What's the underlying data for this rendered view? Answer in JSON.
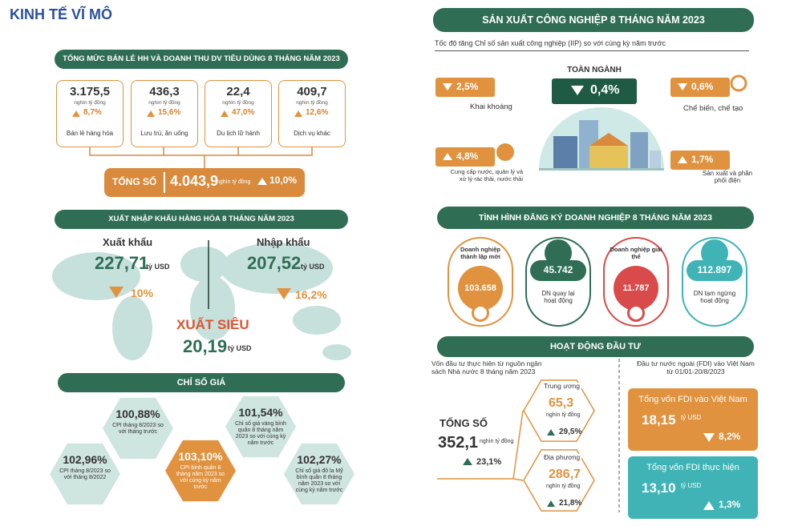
{
  "header": {
    "title": "KINH TẾ VĨ MÔ"
  },
  "retail": {
    "title": "TỔNG MỨC BÁN LẺ HH VÀ DOANH THU DV TIÊU DÙNG 8 THÁNG NĂM 2023",
    "items": [
      {
        "value": "3.175,5",
        "unit": "nghìn tỷ đồng",
        "change": "8,7%",
        "trend": "up",
        "label": "Bán lẻ hàng hóa"
      },
      {
        "value": "436,3",
        "unit": "nghìn tỷ đồng",
        "change": "15,6%",
        "trend": "up",
        "label": "Lưu trú, ăn uống"
      },
      {
        "value": "22,4",
        "unit": "nghìn tỷ đồng",
        "change": "47,0%",
        "trend": "up",
        "label": "Du lịch lữ hành"
      },
      {
        "value": "409,7",
        "unit": "nghìn tỷ đồng",
        "change": "12,6%",
        "trend": "up",
        "label": "Dịch vụ khác"
      }
    ],
    "total": {
      "label": "TỔNG SỐ",
      "value": "4.043,9",
      "unit": "nghìn tỷ đồng",
      "change": "10,0%",
      "trend": "up"
    }
  },
  "trade": {
    "title": "XUẤT NHẬP KHẨU HÀNG HÓA 8 THÁNG NĂM 2023",
    "export": {
      "label": "Xuất khẩu",
      "value": "227,71",
      "unit": "tỷ USD",
      "change": "10%",
      "trend": "down"
    },
    "import": {
      "label": "Nhập khẩu",
      "value": "207,52",
      "unit": "tỷ USD",
      "change": "16,2%",
      "trend": "down"
    },
    "surplus": {
      "label": "XUẤT SIÊU",
      "value": "20,19",
      "unit": "tỷ USD"
    }
  },
  "prices": {
    "title": "CHỈ SỐ GIÁ",
    "items": [
      {
        "value": "100,88%",
        "label": "CPI tháng 8/2023 so với tháng trước"
      },
      {
        "value": "101,54%",
        "label": "Chỉ số giá vàng bình quân 8 tháng năm 2023 so với cùng kỳ năm trước"
      },
      {
        "value": "102,96%",
        "label": "CPI tháng 8/2023 so với tháng 8/2022"
      },
      {
        "value": "103,10%",
        "label": "CPI bình quân 8 tháng năm 2023 so với cùng kỳ năm trước"
      },
      {
        "value": "102,27%",
        "label": "Chỉ số giá đô la Mỹ bình quân 8 tháng năm 2023 so với cùng kỳ năm trước"
      }
    ]
  },
  "industry": {
    "title": "SẢN XUẤT CÔNG NGHIỆP 8 THÁNG NĂM 2023",
    "subtitle": "Tốc độ tăng Chỉ số sản xuất công nghiệp (IIP) so với cùng kỳ năm trước",
    "overall": {
      "label": "TOÀN NGÀNH",
      "value": "0,4%",
      "trend": "down"
    },
    "items": [
      {
        "value": "2,5%",
        "trend": "down",
        "label": "Khai khoáng"
      },
      {
        "value": "0,6%",
        "trend": "down",
        "label": "Chế biến, chế tạo"
      },
      {
        "value": "4,8%",
        "trend": "up",
        "label": "Cung cấp nước, quản lý và xử lý rác thải, nước thải"
      },
      {
        "value": "1,7%",
        "trend": "up",
        "label": "Sản xuất và phân phối điện"
      }
    ]
  },
  "business": {
    "title": "TÌNH HÌNH ĐĂNG KÝ DOANH NGHIỆP 8 THÁNG NĂM 2023",
    "items": [
      {
        "label": "Doanh nghiệp thành lập mới",
        "value": "103.658"
      },
      {
        "label": "DN quay lại hoạt động",
        "value": "45.742"
      },
      {
        "label": "Doanh nghiệp giải thể",
        "value": "11.787"
      },
      {
        "label": "DN tạm ngừng hoạt động",
        "value": "112.897"
      }
    ]
  },
  "investment": {
    "title": "HOẠT ĐỘNG ĐẦU TƯ",
    "state": {
      "caption": "Vốn đầu tư thực hiện từ nguồn ngân sách Nhà nước 8 tháng năm 2023",
      "total": {
        "label": "TỔNG SỐ",
        "value": "352,1",
        "unit": "nghìn tỷ đồng",
        "change": "23,1%",
        "trend": "up"
      },
      "central": {
        "label": "Trung ương",
        "value": "65,3",
        "unit": "nghìn tỷ đồng",
        "change": "29,5%",
        "trend": "up"
      },
      "local": {
        "label": "Địa phương",
        "value": "286,7",
        "unit": "nghìn tỷ đồng",
        "change": "21,8%",
        "trend": "up"
      }
    },
    "fdi": {
      "caption": "Đầu tư nước ngoài (FDI) vào Việt Nam từ 01/01-20/8/2023",
      "registered": {
        "label": "Tổng vốn FDI vào Việt Nam",
        "value": "18,15",
        "unit": "tỷ USD",
        "change": "8,2%",
        "trend": "down"
      },
      "disbursed": {
        "label": "Tổng vốn FDI thực hiện",
        "value": "13,10",
        "unit": "tỷ USD",
        "change": "1,3%",
        "trend": "up"
      }
    }
  }
}
